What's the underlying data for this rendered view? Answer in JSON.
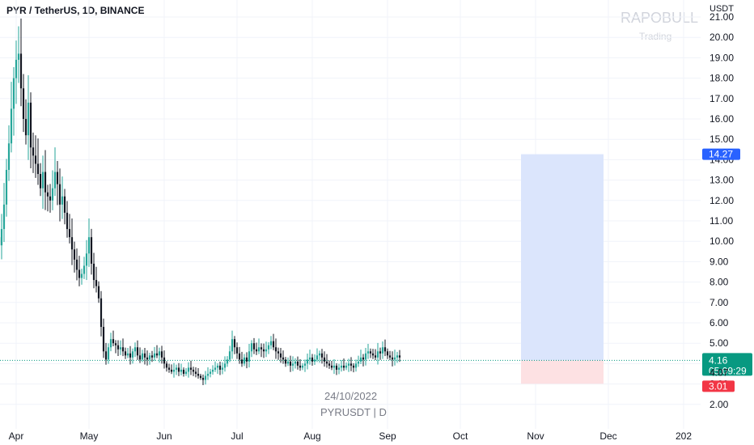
{
  "header": {
    "title": "PYR / TetherUS, 1D, BINANCE",
    "unit": "USDT"
  },
  "watermark": {
    "brand": "RAPOBULL",
    "sub": "Trading"
  },
  "overlay": {
    "date": "24/10/2022",
    "symbol": "PYRUSDT | D"
  },
  "colors": {
    "up": "#26a69a",
    "down": "#131722",
    "target_zone": "#dbe5fc",
    "stop_zone": "#fde1e3",
    "target_tag": "#2962ff",
    "stop_tag": "#f23645",
    "last_price_tag": "#089981",
    "grid": "#f0f3fa"
  },
  "chart_data": {
    "type": "candlestick",
    "title": "PYR / TetherUS, 1D, BINANCE",
    "ylabel": "USDT",
    "ylim": [
      1,
      21
    ],
    "y_ticks": [
      "2.00",
      "3.00",
      "4.00",
      "5.00",
      "6.00",
      "7.00",
      "8.00",
      "9.00",
      "10.00",
      "11.00",
      "12.00",
      "13.00",
      "14.00",
      "15.00",
      "16.00",
      "17.00",
      "18.00",
      "19.00",
      "20.00",
      "21.00"
    ],
    "x_ticks": [
      "Apr",
      "May",
      "Jun",
      "Jul",
      "Aug",
      "Sep",
      "Oct",
      "Nov",
      "Dec",
      "202"
    ],
    "x_tick_days": [
      0,
      30,
      61,
      91,
      122,
      153,
      183,
      214,
      244,
      275
    ],
    "first_candle_day": -8,
    "close_series": [
      10.2,
      9.8,
      10.6,
      11.8,
      13.5,
      14.8,
      16.5,
      18.0,
      18.9,
      19.2,
      17.5,
      16.0,
      15.2,
      16.8,
      14.6,
      14.2,
      13.8,
      13.3,
      12.6,
      13.4,
      12.4,
      12.2,
      12.0,
      12.6,
      13.4,
      12.8,
      11.8,
      12.2,
      11.4,
      10.6,
      10.2,
      9.6,
      9.1,
      8.6,
      8.2,
      8.4,
      8.8,
      9.4,
      10.2,
      8.9,
      8.1,
      7.8,
      7.2,
      5.8,
      4.6,
      4.2,
      4.8,
      5.2,
      5.0,
      4.9,
      4.7,
      4.8,
      4.6,
      4.4,
      4.5,
      4.3,
      4.6,
      4.8,
      4.4,
      4.2,
      4.5,
      4.3,
      4.2,
      4.4,
      4.3,
      4.5,
      4.4,
      4.6,
      4.3,
      4.0,
      3.8,
      3.7,
      3.6,
      3.7,
      3.8,
      3.6,
      3.7,
      3.5,
      3.6,
      3.8,
      3.7,
      3.6,
      3.5,
      3.4,
      3.3,
      3.2,
      3.4,
      3.5,
      3.6,
      3.7,
      3.8,
      3.9,
      3.7,
      3.8,
      4.0,
      4.2,
      4.6,
      5.2,
      4.8,
      4.5,
      4.2,
      4.0,
      4.3,
      4.1,
      4.6,
      5.0,
      4.7,
      4.6,
      4.8,
      4.7,
      4.6,
      4.7,
      4.9,
      5.1,
      4.8,
      4.6,
      4.5,
      4.3,
      4.2,
      4.0,
      4.1,
      3.9,
      4.0,
      4.1,
      3.9,
      3.8,
      3.9,
      4.0,
      4.2,
      4.3,
      4.1,
      4.2,
      4.4,
      4.5,
      4.3,
      4.1,
      4.0,
      3.9,
      3.8,
      3.9,
      3.7,
      3.8,
      3.9,
      3.8,
      3.9,
      4.0,
      3.9,
      3.8,
      4.0,
      4.1,
      4.3,
      4.2,
      4.5,
      4.6,
      4.5,
      4.4,
      4.3,
      4.6,
      4.5,
      4.8,
      4.6,
      4.4,
      4.3,
      4.2,
      4.3,
      4.4,
      4.3
    ],
    "target_zone": {
      "start_day": 208,
      "end_day": 242,
      "top": 14.27,
      "entry": 4.16,
      "stop": 3.01
    },
    "price_tags": [
      {
        "value": 14.27,
        "text": "14.27",
        "kind": "target"
      },
      {
        "value": 4.16,
        "text": "4.16",
        "kind": "last",
        "sub": "05:09:29"
      },
      {
        "value": 4.07,
        "text": "4.07",
        "kind": "plain"
      },
      {
        "value": 3.01,
        "text": "3.01",
        "kind": "stop"
      }
    ],
    "last_price": 4.16,
    "grid": true
  }
}
